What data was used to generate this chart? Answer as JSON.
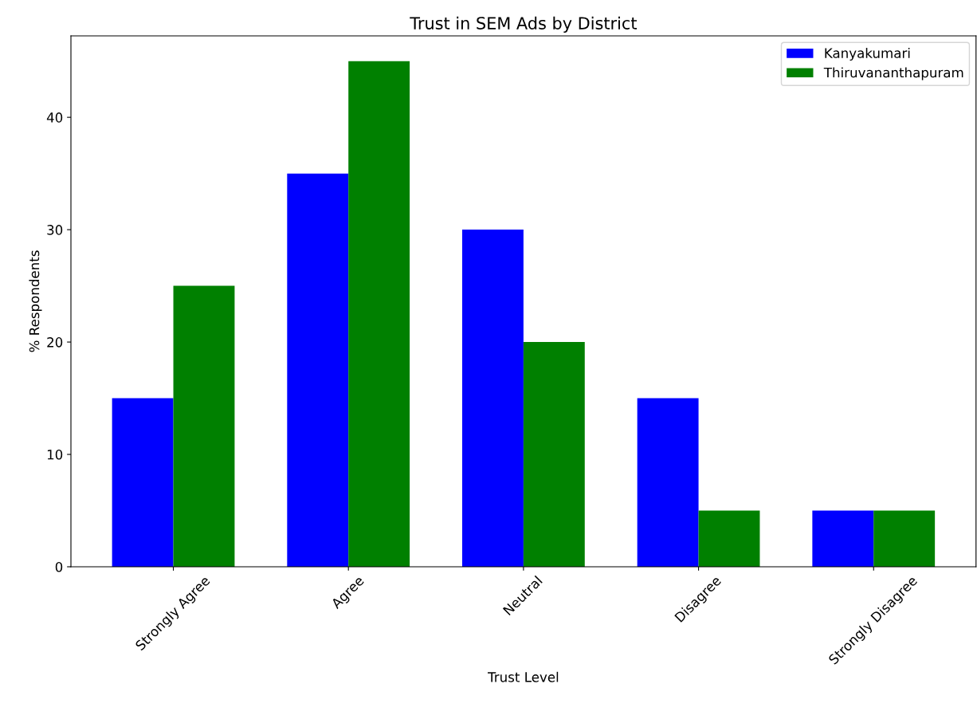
{
  "chart_data": {
    "type": "bar",
    "title": "Trust in SEM Ads by District",
    "xlabel": "Trust Level",
    "ylabel": "% Respondents",
    "categories": [
      "Strongly Agree",
      "Agree",
      "Neutral",
      "Disagree",
      "Strongly Disagree"
    ],
    "series": [
      {
        "name": "Kanyakumari",
        "color": "#0000ff",
        "values": [
          15,
          35,
          30,
          15,
          5
        ]
      },
      {
        "name": "Thiruvananthapuram",
        "color": "#008000",
        "values": [
          25,
          45,
          20,
          5,
          5
        ]
      }
    ],
    "ylim": [
      0,
      47.25
    ],
    "yticks": [
      0,
      10,
      20,
      30,
      40
    ],
    "grid": false,
    "legend": "top right"
  }
}
